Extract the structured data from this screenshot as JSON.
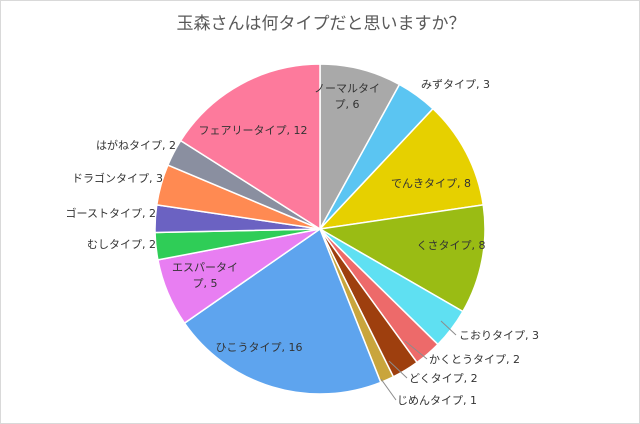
{
  "chart_data": {
    "type": "pie",
    "title": "玉森さんは何タイプだと思いますか？",
    "categories": [
      "ノーマルタイプ",
      "みずタイプ",
      "でんきタイプ",
      "くさタイプ",
      "こおりタイプ",
      "かくとうタイプ",
      "どくタイプ",
      "じめんタイプ",
      "ひこうタイプ",
      "エスパータイプ",
      "むしタイプ",
      "ゴーストタイプ",
      "ドラゴンタイプ",
      "はがねタイプ",
      "フェアリータイプ"
    ],
    "values": [
      6,
      3,
      8,
      8,
      3,
      2,
      2,
      1,
      16,
      5,
      2,
      2,
      3,
      2,
      12
    ],
    "colors": [
      "#a9a9a9",
      "#5bc5f2",
      "#e6d000",
      "#9abc14",
      "#5fe0f2",
      "#ed6a6a",
      "#9e3f0e",
      "#c9a53c",
      "#5ea4ee",
      "#e87ef2",
      "#2fcd57",
      "#6b62c2",
      "#ff8a52",
      "#8a8fa0",
      "#fd7a9c"
    ],
    "labels": [
      "ノーマルタイプ, 6",
      "みずタイプ, 3",
      "でんきタイプ, 8",
      "くさタイプ, 8",
      "こおりタイプ, 3",
      "かくとうタイプ, 2",
      "どくタイプ, 2",
      "じめんタイプ, 1",
      "ひこうタイプ, 16",
      "エスパータイプ, 5",
      "むしタイプ, 2",
      "ゴーストタイプ, 2",
      "ドラゴンタイプ, 3",
      "はがねタイプ, 2",
      "フェアリータイプ, 12"
    ],
    "label_lines": [
      [
        "ノーマルタイ",
        "プ, 6"
      ],
      [
        "みずタイプ, 3"
      ],
      [
        "でんきタイプ, 8"
      ],
      [
        "くさタイプ, 8"
      ],
      [
        "こおりタイプ, 3"
      ],
      [
        "かくとうタイプ, 2"
      ],
      [
        "どくタイプ, 2"
      ],
      [
        "じめんタイプ, 1"
      ],
      [
        "ひこうタイプ, 16"
      ],
      [
        "エスパータイ",
        "プ, 5"
      ],
      [
        "むしタイプ, 2"
      ],
      [
        "ゴーストタイプ, 2"
      ],
      [
        "ドラゴンタイプ, 3"
      ],
      [
        "はがねタイプ, 2"
      ],
      [
        "フェアリータイプ, 12"
      ]
    ],
    "start_angle": "12 o'clock",
    "direction": "clockwise",
    "legend": "none"
  }
}
